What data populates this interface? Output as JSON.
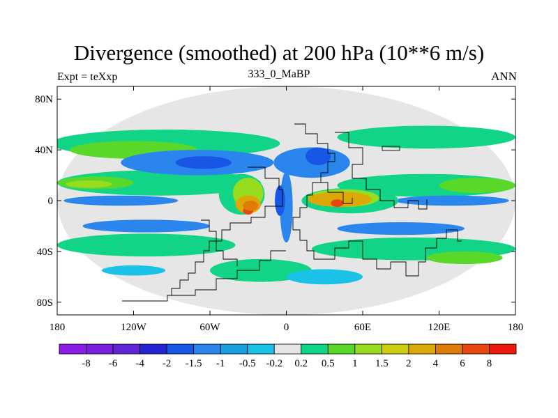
{
  "title": "Divergence (smoothed) at 200 hPa (10**6 m/s)",
  "left_subtitle": "Expt = teXxp",
  "center_subtitle": "333_0_MaBP",
  "right_subtitle": "ANN",
  "chart_data": {
    "type": "heatmap",
    "title": "Divergence (smoothed) at 200 hPa (10**6 m/s)",
    "xlabel": "",
    "ylabel": "",
    "xlim": [
      -180,
      180
    ],
    "ylim": [
      -90,
      90
    ],
    "x_ticks": [
      {
        "value": -180,
        "label": "180"
      },
      {
        "value": -120,
        "label": "120W"
      },
      {
        "value": -60,
        "label": "60W"
      },
      {
        "value": 0,
        "label": "0"
      },
      {
        "value": 60,
        "label": "60E"
      },
      {
        "value": 120,
        "label": "120E"
      },
      {
        "value": 180,
        "label": "180"
      }
    ],
    "y_ticks": [
      {
        "value": 80,
        "label": "80N"
      },
      {
        "value": 40,
        "label": "40N"
      },
      {
        "value": 0,
        "label": "0"
      },
      {
        "value": -40,
        "label": "40S"
      },
      {
        "value": -80,
        "label": "80S"
      }
    ],
    "colorbar": {
      "colors": [
        "#8a1ee6",
        "#7a20dc",
        "#6226d6",
        "#2424d2",
        "#1856e6",
        "#2a86ec",
        "#1a9ee2",
        "#1ac2e8",
        "#e6e6e6",
        "#12d486",
        "#5ad82a",
        "#98dc20",
        "#cccc10",
        "#dca808",
        "#e07a08",
        "#e84810",
        "#e81a0e"
      ],
      "labels": [
        "-8",
        "-6",
        "-4",
        "-2",
        "-1.5",
        "-1",
        "-0.5",
        "-0.2",
        "0.2",
        "0.5",
        "1",
        "1.5",
        "2",
        "4",
        "6",
        "8"
      ]
    },
    "regions": [
      {
        "level": 8,
        "lon": 0,
        "lat": 0,
        "rlon": 180,
        "rlat": 90
      },
      {
        "level": 9,
        "lon": -95,
        "lat": 45,
        "rlon": 90,
        "rlat": 11
      },
      {
        "level": 9,
        "lon": 110,
        "lat": 50,
        "rlon": 70,
        "rlat": 9
      },
      {
        "level": 9,
        "lon": -100,
        "lat": 14,
        "rlon": 80,
        "rlat": 10
      },
      {
        "level": 9,
        "lon": 110,
        "lat": 12,
        "rlon": 70,
        "rlat": 9
      },
      {
        "level": 9,
        "lon": -110,
        "lat": -35,
        "rlon": 70,
        "rlat": 9
      },
      {
        "level": 9,
        "lon": 100,
        "lat": -38,
        "rlon": 80,
        "rlat": 9
      },
      {
        "level": 9,
        "lon": -20,
        "lat": -55,
        "rlon": 40,
        "rlat": 9
      },
      {
        "level": 10,
        "lon": -120,
        "lat": 40,
        "rlon": 50,
        "rlat": 7
      },
      {
        "level": 10,
        "lon": 150,
        "lat": 12,
        "rlon": 30,
        "rlat": 6
      },
      {
        "level": 10,
        "lon": -150,
        "lat": 14,
        "rlon": 30,
        "rlat": 5
      },
      {
        "level": 10,
        "lon": 140,
        "lat": -45,
        "rlon": 30,
        "rlat": 5
      },
      {
        "level": 11,
        "lon": -155,
        "lat": 13,
        "rlon": 18,
        "rlat": 3
      },
      {
        "level": 5,
        "lon": -70,
        "lat": 30,
        "rlon": 60,
        "rlat": 10
      },
      {
        "level": 5,
        "lon": 20,
        "lat": 30,
        "rlon": 30,
        "rlat": 12
      },
      {
        "level": 5,
        "lon": -130,
        "lat": 0,
        "rlon": 45,
        "rlat": 4
      },
      {
        "level": 5,
        "lon": 130,
        "lat": 0,
        "rlon": 45,
        "rlat": 4
      },
      {
        "level": 5,
        "lon": -110,
        "lat": -20,
        "rlon": 50,
        "rlat": 5
      },
      {
        "level": 5,
        "lon": 90,
        "lat": -22,
        "rlon": 50,
        "rlat": 5
      },
      {
        "level": 5,
        "lon": 0,
        "lat": -5,
        "rlon": 5,
        "rlat": 28
      },
      {
        "level": 4,
        "lon": -65,
        "lat": 30,
        "rlon": 22,
        "rlat": 5
      },
      {
        "level": 4,
        "lon": 25,
        "lat": 35,
        "rlon": 10,
        "rlat": 7
      },
      {
        "level": 4,
        "lon": -5,
        "lat": 0,
        "rlon": 4,
        "rlat": 12
      },
      {
        "level": 7,
        "lon": 30,
        "lat": -60,
        "rlon": 30,
        "rlat": 6
      },
      {
        "level": 7,
        "lon": -120,
        "lat": -55,
        "rlon": 25,
        "rlat": 4
      },
      {
        "level": 9,
        "lon": -35,
        "lat": 5,
        "rlon": 18,
        "rlat": 16
      },
      {
        "level": 9,
        "lon": 50,
        "lat": 0,
        "rlon": 38,
        "rlat": 10
      },
      {
        "level": 11,
        "lon": -30,
        "lat": 6,
        "rlon": 12,
        "rlat": 12
      },
      {
        "level": 11,
        "lon": 45,
        "lat": 2,
        "rlon": 28,
        "rlat": 7
      },
      {
        "level": 13,
        "lon": -30,
        "lat": -3,
        "rlon": 10,
        "rlat": 7
      },
      {
        "level": 13,
        "lon": 42,
        "lat": 1,
        "rlon": 25,
        "rlat": 6
      },
      {
        "level": 15,
        "lon": -30,
        "lat": -8,
        "rlon": 4,
        "rlat": 3
      },
      {
        "level": 15,
        "lon": 40,
        "lat": -2,
        "rlon": 5,
        "rlat": 3
      },
      {
        "level": 14,
        "lon": -28,
        "lat": -4,
        "rlon": 6,
        "rlat": 4
      }
    ]
  }
}
